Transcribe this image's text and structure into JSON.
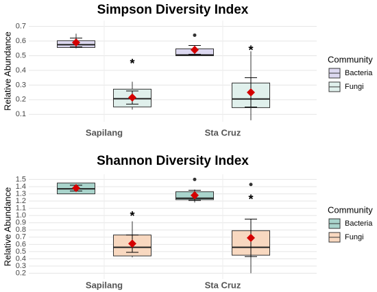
{
  "chart_data": [
    {
      "type": "box",
      "title": "Simpson Diversity Index",
      "y_label": "Relative Abundance",
      "categories": [
        "Sapilang",
        "Sta Cruz"
      ],
      "legend_title": "Community",
      "ylim": [
        0.05,
        0.74
      ],
      "yticks": [
        0.1,
        0.2,
        0.3,
        0.4,
        0.5,
        0.6,
        0.7
      ],
      "grid": true,
      "series": [
        {
          "name": "Bacteria",
          "color": "#dcd8f0",
          "boxes": [
            {
              "min": 0.55,
              "q1": 0.556,
              "median": 0.575,
              "q3": 0.602,
              "max": 0.65,
              "mean": 0.59,
              "error": 0.03,
              "outliers": []
            },
            {
              "min": 0.5,
              "q1": 0.5,
              "median": 0.505,
              "q3": 0.547,
              "max": 0.57,
              "mean": 0.54,
              "error": 0.03,
              "outliers": [
                0.64
              ]
            }
          ]
        },
        {
          "name": "Fungi",
          "color": "#e0f0ec",
          "boxes": [
            {
              "min": 0.133,
              "q1": 0.151,
              "median": 0.207,
              "q3": 0.272,
              "max": 0.323,
              "mean": 0.215,
              "error": 0.045,
              "outliers": [],
              "label": "*",
              "label_y": 0.46
            },
            {
              "min": 0.06,
              "q1": 0.146,
              "median": 0.205,
              "q3": 0.314,
              "max": 0.53,
              "mean": 0.25,
              "error": 0.1,
              "outliers": [],
              "label": "*",
              "label_y": 0.55
            }
          ]
        }
      ]
    },
    {
      "type": "box",
      "title": "Shannon Diversity Index",
      "y_label": "Relative Abundance",
      "categories": [
        "Sapilang",
        "Sta Cruz"
      ],
      "legend_title": "Community",
      "ylim": [
        0.12,
        1.57
      ],
      "yticks": [
        0.2,
        0.3,
        0.4,
        0.5,
        0.6,
        0.7,
        0.8,
        0.9,
        {
          "value": 1,
          "label": "1.0"
        },
        1.1,
        1.2,
        1.3,
        1.4,
        1.5
      ],
      "grid": true,
      "series": [
        {
          "name": "Bacteria",
          "color": "#a9d4cc",
          "boxes": [
            {
              "min": 1.3,
              "q1": 1.3,
              "median": 1.37,
              "q3": 1.45,
              "max": 1.45,
              "mean": 1.38,
              "error": 0.04,
              "outliers": []
            },
            {
              "min": 1.18,
              "q1": 1.22,
              "median": 1.24,
              "q3": 1.33,
              "max": 1.36,
              "mean": 1.28,
              "error": 0.07,
              "outliers": [
                1.5
              ]
            }
          ]
        },
        {
          "name": "Fungi",
          "color": "#f8d8c0",
          "boxes": [
            {
              "min": 0.42,
              "q1": 0.44,
              "median": 0.56,
              "q3": 0.73,
              "max": 0.92,
              "mean": 0.61,
              "error": 0.12,
              "outliers": [],
              "label": "*",
              "label_y": 1.02
            },
            {
              "min": 0.2,
              "q1": 0.45,
              "median": 0.56,
              "q3": 0.79,
              "max": 0.93,
              "mean": 0.69,
              "error": 0.26,
              "outliers": [
                1.43
              ],
              "label": "*",
              "label_y": 1.25
            }
          ]
        }
      ]
    }
  ]
}
